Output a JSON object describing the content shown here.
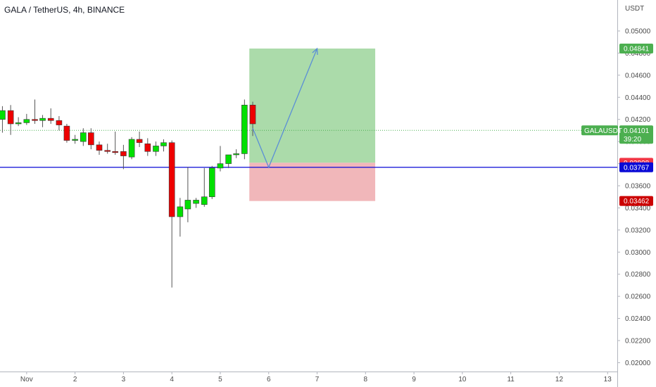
{
  "chart_data": {
    "type": "candlestick",
    "title": "GALA / TetherUS, 4h, BINANCE",
    "currency_label": "USDT",
    "y_ticks": [
      "0.05000",
      "0.04800",
      "0.04600",
      "0.04400",
      "0.04200",
      "0.04000",
      "0.03800",
      "0.03600",
      "0.03400",
      "0.03200",
      "0.03000",
      "0.02800",
      "0.02600",
      "0.02400",
      "0.02200",
      "0.02000"
    ],
    "x_ticks": [
      {
        "label": "Nov",
        "day": 1
      },
      {
        "label": "2",
        "day": 2
      },
      {
        "label": "3",
        "day": 3
      },
      {
        "label": "4",
        "day": 4
      },
      {
        "label": "5",
        "day": 5
      },
      {
        "label": "6",
        "day": 6
      },
      {
        "label": "7",
        "day": 7
      },
      {
        "label": "8",
        "day": 8
      },
      {
        "label": "9",
        "day": 9
      },
      {
        "label": "10",
        "day": 10
      },
      {
        "label": "11",
        "day": 11
      },
      {
        "label": "12",
        "day": 12
      },
      {
        "label": "13",
        "day": 13
      }
    ],
    "ylim": [
      0.0192,
      0.0528
    ],
    "xlim": [
      0.45,
      13.2
    ],
    "candles": [
      {
        "t": 0.5,
        "o": 0.042,
        "h": 0.0432,
        "l": 0.0408,
        "c": 0.0428
      },
      {
        "t": 0.67,
        "o": 0.0428,
        "h": 0.0433,
        "l": 0.0406,
        "c": 0.0416
      },
      {
        "t": 0.83,
        "o": 0.0416,
        "h": 0.0422,
        "l": 0.0414,
        "c": 0.0417
      },
      {
        "t": 1.0,
        "o": 0.0417,
        "h": 0.0425,
        "l": 0.0415,
        "c": 0.042
      },
      {
        "t": 1.17,
        "o": 0.042,
        "h": 0.0438,
        "l": 0.0416,
        "c": 0.0419
      },
      {
        "t": 1.33,
        "o": 0.0419,
        "h": 0.0424,
        "l": 0.0413,
        "c": 0.0421
      },
      {
        "t": 1.5,
        "o": 0.0421,
        "h": 0.043,
        "l": 0.0416,
        "c": 0.0419
      },
      {
        "t": 1.67,
        "o": 0.0419,
        "h": 0.0423,
        "l": 0.041,
        "c": 0.0415
      },
      {
        "t": 1.83,
        "o": 0.0414,
        "h": 0.0416,
        "l": 0.0399,
        "c": 0.0401
      },
      {
        "t": 2.0,
        "o": 0.0401,
        "h": 0.0406,
        "l": 0.0398,
        "c": 0.0402
      },
      {
        "t": 2.17,
        "o": 0.04,
        "h": 0.0412,
        "l": 0.0396,
        "c": 0.0408
      },
      {
        "t": 2.33,
        "o": 0.0408,
        "h": 0.0412,
        "l": 0.0393,
        "c": 0.0397
      },
      {
        "t": 2.5,
        "o": 0.0397,
        "h": 0.04,
        "l": 0.0388,
        "c": 0.0392
      },
      {
        "t": 2.67,
        "o": 0.0392,
        "h": 0.0398,
        "l": 0.0389,
        "c": 0.0391
      },
      {
        "t": 2.83,
        "o": 0.0391,
        "h": 0.0409,
        "l": 0.0388,
        "c": 0.039
      },
      {
        "t": 3.0,
        "o": 0.0391,
        "h": 0.0397,
        "l": 0.0375,
        "c": 0.0387
      },
      {
        "t": 3.17,
        "o": 0.0386,
        "h": 0.0404,
        "l": 0.0384,
        "c": 0.0402
      },
      {
        "t": 3.33,
        "o": 0.0402,
        "h": 0.0409,
        "l": 0.0395,
        "c": 0.0399
      },
      {
        "t": 3.5,
        "o": 0.0398,
        "h": 0.0403,
        "l": 0.0387,
        "c": 0.0391
      },
      {
        "t": 3.67,
        "o": 0.0391,
        "h": 0.04,
        "l": 0.0387,
        "c": 0.0396
      },
      {
        "t": 3.83,
        "o": 0.0396,
        "h": 0.0402,
        "l": 0.0391,
        "c": 0.0399
      },
      {
        "t": 4.0,
        "o": 0.0399,
        "h": 0.0401,
        "l": 0.0268,
        "c": 0.0332
      },
      {
        "t": 4.17,
        "o": 0.0332,
        "h": 0.0349,
        "l": 0.0314,
        "c": 0.0341
      },
      {
        "t": 4.33,
        "o": 0.0339,
        "h": 0.0377,
        "l": 0.0327,
        "c": 0.0347
      },
      {
        "t": 4.5,
        "o": 0.0344,
        "h": 0.0349,
        "l": 0.034,
        "c": 0.0347
      },
      {
        "t": 4.67,
        "o": 0.0343,
        "h": 0.0376,
        "l": 0.0341,
        "c": 0.035
      },
      {
        "t": 4.83,
        "o": 0.035,
        "h": 0.0378,
        "l": 0.0348,
        "c": 0.0376
      },
      {
        "t": 5.0,
        "o": 0.0376,
        "h": 0.0396,
        "l": 0.0373,
        "c": 0.038
      },
      {
        "t": 5.17,
        "o": 0.038,
        "h": 0.0386,
        "l": 0.0376,
        "c": 0.0388
      },
      {
        "t": 5.33,
        "o": 0.0388,
        "h": 0.0393,
        "l": 0.0385,
        "c": 0.0389
      },
      {
        "t": 5.5,
        "o": 0.0389,
        "h": 0.0438,
        "l": 0.0384,
        "c": 0.0433
      },
      {
        "t": 5.67,
        "o": 0.0433,
        "h": 0.0436,
        "l": 0.0405,
        "c": 0.0416
      }
    ],
    "horizontal_line": {
      "value": 0.03767,
      "color": "#0a0ad6"
    },
    "current_price_line": {
      "value": 0.04101,
      "color": "#4caf50"
    },
    "position": {
      "entry": 0.03808,
      "target": 0.04841,
      "stop": 0.03462,
      "t_start": 5.6,
      "t_end": 8.2,
      "profit_color": "#a6d9a5",
      "loss_color": "#f0b3b6"
    },
    "projection": {
      "points": [
        {
          "t": 5.67,
          "v": 0.0412
        },
        {
          "t": 6.0,
          "v": 0.03767
        },
        {
          "t": 7.0,
          "v": 0.04841
        }
      ],
      "color": "#5b8fd6"
    },
    "price_tags": [
      {
        "label": "0.04841",
        "value": 0.04841,
        "color": "#4caf50"
      },
      {
        "label": "0.04101",
        "value": 0.04101,
        "color": "#4caf50",
        "symbol": "GALAUSDT",
        "countdown": "39:20"
      },
      {
        "label": "0.03808",
        "value": 0.03808,
        "color": "#f23645"
      },
      {
        "label": "0.03767",
        "value": 0.03767,
        "color": "#0a0ad6"
      },
      {
        "label": "0.03462",
        "value": 0.03462,
        "color": "#cc0000"
      }
    ],
    "up_color": "#00e000",
    "down_color": "#ee0000"
  }
}
